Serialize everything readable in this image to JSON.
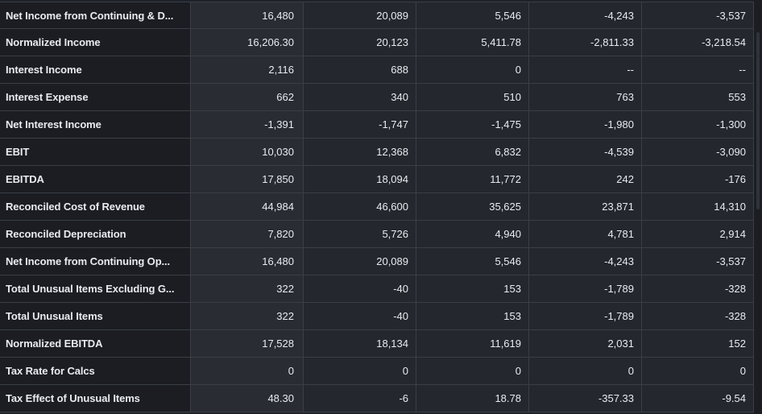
{
  "financials_table": {
    "rows": [
      {
        "label": "Net Income from Continuing & D...",
        "values": [
          "16,480",
          "20,089",
          "5,546",
          "-4,243",
          "-3,537"
        ]
      },
      {
        "label": "Normalized Income",
        "values": [
          "16,206.30",
          "20,123",
          "5,411.78",
          "-2,811.33",
          "-3,218.54"
        ]
      },
      {
        "label": "Interest Income",
        "values": [
          "2,116",
          "688",
          "0",
          "--",
          "--"
        ]
      },
      {
        "label": "Interest Expense",
        "values": [
          "662",
          "340",
          "510",
          "763",
          "553"
        ]
      },
      {
        "label": "Net Interest Income",
        "values": [
          "-1,391",
          "-1,747",
          "-1,475",
          "-1,980",
          "-1,300"
        ]
      },
      {
        "label": "EBIT",
        "values": [
          "10,030",
          "12,368",
          "6,832",
          "-4,539",
          "-3,090"
        ]
      },
      {
        "label": "EBITDA",
        "values": [
          "17,850",
          "18,094",
          "11,772",
          "242",
          "-176"
        ]
      },
      {
        "label": "Reconciled Cost of Revenue",
        "values": [
          "44,984",
          "46,600",
          "35,625",
          "23,871",
          "14,310"
        ]
      },
      {
        "label": "Reconciled Depreciation",
        "values": [
          "7,820",
          "5,726",
          "4,940",
          "4,781",
          "2,914"
        ]
      },
      {
        "label": "Net Income from Continuing Op...",
        "values": [
          "16,480",
          "20,089",
          "5,546",
          "-4,243",
          "-3,537"
        ]
      },
      {
        "label": "Total Unusual Items Excluding G...",
        "values": [
          "322",
          "-40",
          "153",
          "-1,789",
          "-328"
        ]
      },
      {
        "label": "Total Unusual Items",
        "values": [
          "322",
          "-40",
          "153",
          "-1,789",
          "-328"
        ]
      },
      {
        "label": "Normalized EBITDA",
        "values": [
          "17,528",
          "18,134",
          "11,619",
          "2,031",
          "152"
        ]
      },
      {
        "label": "Tax Rate for Calcs",
        "values": [
          "0",
          "0",
          "0",
          "0",
          "0"
        ]
      },
      {
        "label": "Tax Effect of Unusual Items",
        "values": [
          "48.30",
          "-6",
          "18.78",
          "-357.33",
          "-9.54"
        ]
      }
    ]
  }
}
